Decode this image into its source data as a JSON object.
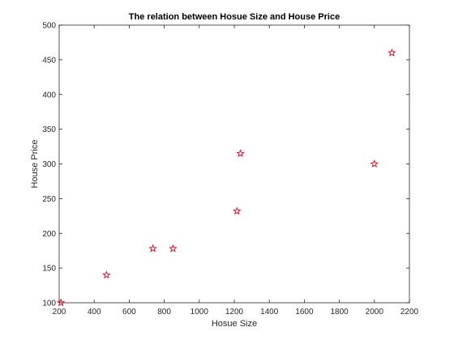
{
  "chart_data": {
    "type": "scatter",
    "title": "The relation between Hosue Size and House Price",
    "xlabel": "Hosue Size",
    "ylabel": "House Price",
    "xlim": [
      200,
      2200
    ],
    "ylim": [
      100,
      500
    ],
    "xticks": [
      200,
      400,
      600,
      800,
      1000,
      1200,
      1400,
      1600,
      1800,
      2000,
      2200
    ],
    "yticks": [
      100,
      150,
      200,
      250,
      300,
      350,
      400,
      450,
      500
    ],
    "grid": false,
    "marker": "star",
    "marker_color": "#e3001b",
    "series": [
      {
        "x": [
          210,
          470,
          735,
          850,
          1215,
          1235,
          2000,
          2100
        ],
        "y": [
          100,
          140,
          178,
          178,
          232,
          315,
          300,
          460
        ]
      }
    ]
  }
}
